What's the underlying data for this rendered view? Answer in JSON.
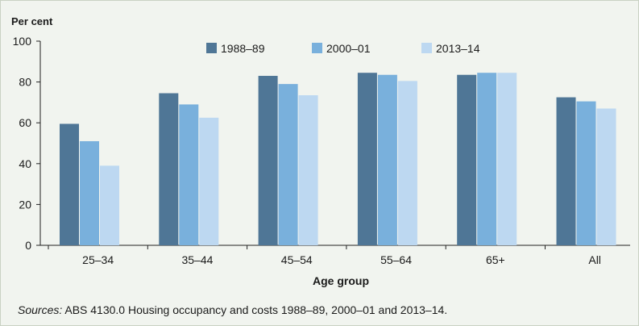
{
  "chart_data": {
    "type": "bar",
    "ylabel": "Per cent",
    "xlabel": "Age group",
    "ylim": [
      0,
      100
    ],
    "yticks": [
      0,
      20,
      40,
      60,
      80,
      100
    ],
    "grid": false,
    "legend_position": "top",
    "categories": [
      "25–34",
      "35–44",
      "45–54",
      "55–64",
      "65+",
      "All"
    ],
    "series": [
      {
        "name": "1988–89",
        "color": "#4f7696",
        "values": [
          59.5,
          74.5,
          83,
          84.5,
          83.5,
          72.5
        ]
      },
      {
        "name": "2000–01",
        "color": "#79b0dc",
        "values": [
          51,
          69,
          79,
          83.5,
          84.5,
          70.5
        ]
      },
      {
        "name": "2013–14",
        "color": "#bdd8f1",
        "values": [
          39,
          62.5,
          73.5,
          80.5,
          84.5,
          67
        ]
      }
    ]
  },
  "source": {
    "label": "Sources:",
    "text": " ABS 4130.0 Housing occupancy and costs 1988–89, 2000–01 and 2013–14."
  }
}
